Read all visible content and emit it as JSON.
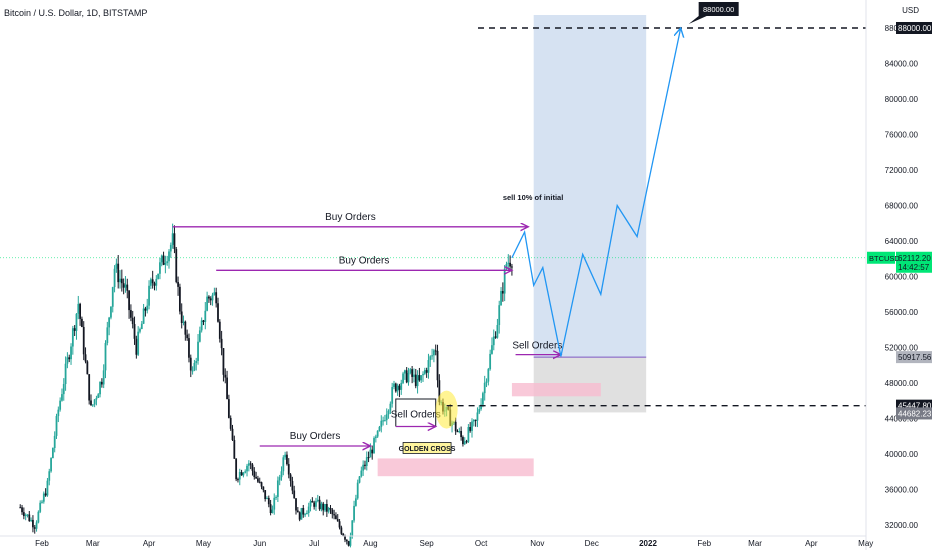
{
  "header": {
    "title": "Bitcoin / U.S. Dollar, 1D, BITSTAMP"
  },
  "price_scale": {
    "currency": "USD",
    "ticks": [
      "88000.00",
      "84000.00",
      "80000.00",
      "76000.00",
      "72000.00",
      "68000.00",
      "64000.00",
      "60000.00",
      "56000.00",
      "52000.00",
      "48000.00",
      "44000.00",
      "40000.00",
      "36000.00",
      "32000.00"
    ]
  },
  "time_scale": {
    "ticks": [
      "Feb",
      "Mar",
      "Apr",
      "May",
      "Jun",
      "Jul",
      "Aug",
      "Sep",
      "Oct",
      "Nov",
      "Dec",
      "2022",
      "Feb",
      "Mar",
      "Apr",
      "May"
    ]
  },
  "badges": {
    "symbol": "BTCUSD",
    "last_price": "62112.20",
    "countdown": "14:42:57",
    "level_sell": "50917.56",
    "level_dashed": "45447.80",
    "level_box_bottom": "44682.23",
    "level_target": "88000.00",
    "target_callout": "88000.00"
  },
  "annotations": {
    "buy_orders": "Buy Orders",
    "sell_orders": "Sell Orders",
    "golden_cross": "GOLDEN CROSS",
    "sell_10": "sell 10% of initial"
  },
  "colors": {
    "bull": "#26a69a",
    "bear": "#131722",
    "arrow": "#9c27b0",
    "projection": "#2196f3",
    "target_box": "#c5d6ec",
    "stop_box": "#d6d6d6",
    "zone": "#f8bbd0",
    "last_price": "#00e676"
  },
  "chart_data": {
    "type": "candlestick",
    "title": "Bitcoin / U.S. Dollar, 1D, BITSTAMP",
    "y_axis": {
      "min": 31000,
      "max": 92000,
      "unit": "USD"
    },
    "close_path": [
      [
        "2021-01-20",
        34000
      ],
      [
        "2021-01-28",
        32000
      ],
      [
        "2021-02-04",
        36500
      ],
      [
        "2021-02-10",
        45000
      ],
      [
        "2021-02-21",
        57000
      ],
      [
        "2021-02-28",
        45000
      ],
      [
        "2021-03-06",
        48500
      ],
      [
        "2021-03-13",
        61000
      ],
      [
        "2021-03-19",
        58500
      ],
      [
        "2021-03-25",
        52000
      ],
      [
        "2021-04-02",
        59000
      ],
      [
        "2021-04-14",
        64000
      ],
      [
        "2021-04-18",
        56500
      ],
      [
        "2021-04-25",
        49000
      ],
      [
        "2021-05-03",
        57500
      ],
      [
        "2021-05-08",
        58000
      ],
      [
        "2021-05-12",
        49500
      ],
      [
        "2021-05-19",
        37500
      ],
      [
        "2021-05-26",
        39000
      ],
      [
        "2021-06-08",
        33500
      ],
      [
        "2021-06-15",
        40500
      ],
      [
        "2021-06-22",
        33000
      ],
      [
        "2021-07-01",
        34500
      ],
      [
        "2021-07-10",
        33500
      ],
      [
        "2021-07-20",
        30000
      ],
      [
        "2021-07-26",
        37500
      ],
      [
        "2021-08-05",
        42000
      ],
      [
        "2021-08-14",
        47500
      ],
      [
        "2021-08-22",
        49000
      ],
      [
        "2021-08-28",
        48000
      ],
      [
        "2021-09-06",
        52000
      ],
      [
        "2021-09-08",
        46000
      ],
      [
        "2021-09-21",
        41500
      ],
      [
        "2021-09-28",
        43500
      ],
      [
        "2021-10-03",
        48000
      ],
      [
        "2021-10-10",
        55000
      ],
      [
        "2021-10-15",
        61500
      ],
      [
        "2021-10-18",
        62112
      ]
    ],
    "projection": [
      [
        "2021-10-18",
        62112
      ],
      [
        "2021-10-25",
        65000
      ],
      [
        "2021-10-30",
        59000
      ],
      [
        "2021-11-04",
        61000
      ],
      [
        "2021-11-14",
        51000
      ],
      [
        "2021-11-26",
        62500
      ],
      [
        "2021-12-06",
        58000
      ],
      [
        "2021-12-15",
        68000
      ],
      [
        "2021-12-26",
        64500
      ],
      [
        "2022-01-19",
        88000
      ]
    ],
    "levels": {
      "last_price": 62112.2,
      "sell": 50917.56,
      "dashed_support": 45447.8,
      "box_bottom": 44682.23,
      "target": 88000
    },
    "zones": [
      {
        "from": "2021-08-05",
        "to": "2021-10-30",
        "low": 37500,
        "high": 39500
      },
      {
        "from": "2021-10-18",
        "to": "2021-12-06",
        "low": 46500,
        "high": 48000
      }
    ]
  }
}
